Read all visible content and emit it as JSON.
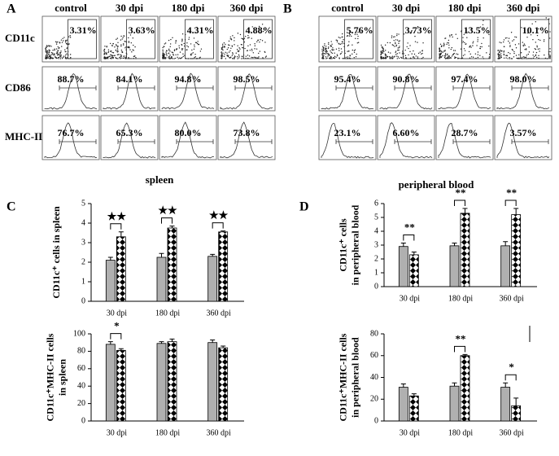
{
  "flow_panels": [
    {
      "letter": "A",
      "tissue": "spleen",
      "columns": [
        "control",
        "30 dpi",
        "180 dpi",
        "360 dpi"
      ],
      "row_labels": [
        "CD11c",
        "CD86",
        "MHC-II"
      ],
      "percents": [
        [
          "3.31%",
          "3.63%",
          "4.31%",
          "4.88%"
        ],
        [
          "88.7%",
          "84.1%",
          "94.8%",
          "98.5%"
        ],
        [
          "76.7%",
          "65.3%",
          "80.0%",
          "73.8%"
        ]
      ]
    },
    {
      "letter": "B",
      "tissue": "peripheral blood",
      "columns": [
        "control",
        "30 dpi",
        "180 dpi",
        "360 dpi"
      ],
      "percents": [
        [
          "5.76%",
          "3.73%",
          "13.5%",
          "10.1%"
        ],
        [
          "95.4%",
          "90.8%",
          "97.4%",
          "98.0%"
        ],
        [
          "23.1%",
          "6.60%",
          "28.7%",
          "3.57%"
        ]
      ]
    }
  ],
  "chart_data": [
    {
      "type": "bar",
      "letter": "C",
      "y_label": [
        "CD11c⁺ cells in spleen"
      ],
      "categories": [
        "30 dpi",
        "180 dpi",
        "360 dpi"
      ],
      "series": [
        {
          "color": "#b0b0b0",
          "values": [
            2.1,
            2.25,
            2.3
          ],
          "errors": [
            0.15,
            0.2,
            0.1
          ]
        },
        {
          "color": "#000000",
          "pattern": "checker",
          "values": [
            3.3,
            3.75,
            3.55
          ],
          "errors": [
            0.25,
            0.1,
            0.05
          ]
        }
      ],
      "significance": [
        "★★",
        "★★",
        "★★"
      ],
      "ylim": [
        0,
        5
      ],
      "yticks": [
        0,
        1,
        2,
        3,
        4,
        5
      ]
    },
    {
      "type": "bar",
      "y_label": [
        "CD11c⁺MHC-II cells",
        "in spleen"
      ],
      "categories": [
        "30 dpi",
        "180 dpi",
        "360 dpi"
      ],
      "series": [
        {
          "color": "#b0b0b0",
          "values": [
            88,
            89,
            90
          ],
          "errors": [
            3,
            2,
            3
          ]
        },
        {
          "color": "#000000",
          "pattern": "checker",
          "values": [
            81,
            91,
            84
          ],
          "errors": [
            2,
            3,
            2
          ]
        }
      ],
      "significance": [
        "*",
        null,
        null
      ],
      "ylim": [
        0,
        100
      ],
      "yticks": [
        0,
        20,
        40,
        60,
        80,
        100
      ]
    },
    {
      "type": "bar",
      "letter": "D",
      "y_label": [
        "CD11c⁺ cells",
        "in peripheral blood"
      ],
      "categories": [
        "30 dpi",
        "180 dpi",
        "360 dpi"
      ],
      "series": [
        {
          "color": "#b0b0b0",
          "values": [
            2.9,
            2.95,
            2.95
          ],
          "errors": [
            0.25,
            0.2,
            0.3
          ]
        },
        {
          "color": "#000000",
          "pattern": "checker",
          "values": [
            2.3,
            5.3,
            5.2
          ],
          "errors": [
            0.2,
            0.35,
            0.45
          ]
        }
      ],
      "significance": [
        "**",
        "**",
        "**"
      ],
      "ylim": [
        0,
        6
      ],
      "yticks": [
        0,
        1,
        2,
        3,
        4,
        5,
        6
      ]
    },
    {
      "type": "bar",
      "y_label": [
        "CD11c⁺MHC-II cells",
        "in peripheral blood"
      ],
      "categories": [
        "30 dpi",
        "180 dpi",
        "360 dpi"
      ],
      "series": [
        {
          "color": "#b0b0b0",
          "values": [
            31,
            32,
            31
          ],
          "errors": [
            3,
            3,
            4
          ]
        },
        {
          "color": "#000000",
          "pattern": "checker",
          "values": [
            23,
            60,
            14
          ],
          "errors": [
            2,
            1,
            7
          ]
        }
      ],
      "significance": [
        null,
        "**",
        "*"
      ],
      "ylim": [
        0,
        80
      ],
      "yticks": [
        0,
        20,
        40,
        60,
        80
      ]
    }
  ]
}
